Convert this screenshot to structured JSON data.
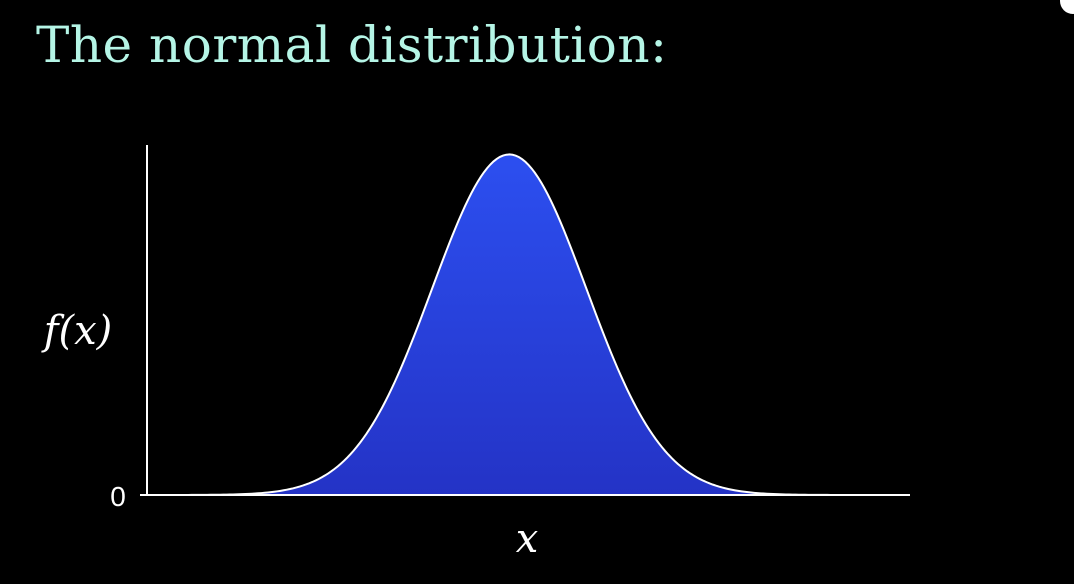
{
  "title": "The normal distribution:",
  "colors": {
    "background": "#000000",
    "title": "#b5f5e6",
    "fill_top": "#2c4ff0",
    "fill_bottom": "#2433c6",
    "curve_stroke": "#ffffff",
    "axis": "#ffffff"
  },
  "chart_data": {
    "type": "area",
    "title": "The normal distribution:",
    "xlabel": "x",
    "ylabel": "f(x)",
    "y_tick_labels": [
      "0"
    ],
    "x_tick_labels": [],
    "curve": "normal pdf",
    "mean": 0,
    "std": 1,
    "xlim": [
      -4.7,
      5.2
    ],
    "ylim": [
      0,
      0.41
    ],
    "fill": true,
    "grid": false,
    "legend": "none"
  }
}
